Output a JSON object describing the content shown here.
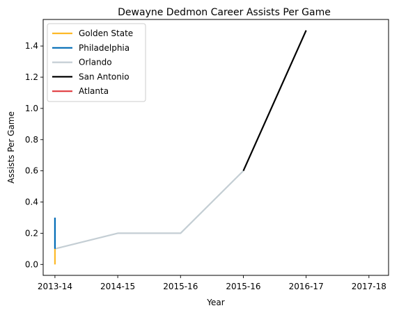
{
  "chart_data": {
    "type": "line",
    "title": "Dewayne Dedmon Career Assists Per Game",
    "xlabel": "Year",
    "ylabel": "Assists Per Game",
    "x_ticks": [
      "2013-14",
      "2014-15",
      "2015-16",
      "2015-16",
      "2016-17",
      "2017-18"
    ],
    "xlim": [
      -0.15,
      4.25
    ],
    "ylim": [
      -0.07,
      1.57
    ],
    "y_ticks": [
      0.0,
      0.2,
      0.4,
      0.6,
      0.8,
      1.0,
      1.2,
      1.4
    ],
    "grid": false,
    "legend_position": "top-left",
    "series": [
      {
        "name": "Golden State",
        "color": "#FDB927",
        "points": [
          [
            0,
            0.1
          ],
          [
            0,
            0.0
          ]
        ]
      },
      {
        "name": "Philadelphia",
        "color": "#006BB6",
        "points": [
          [
            0,
            0.1
          ],
          [
            0,
            0.3
          ]
        ]
      },
      {
        "name": "Orlando",
        "color": "#C4CED4",
        "points": [
          [
            0,
            0.1
          ],
          [
            1,
            0.2
          ],
          [
            2,
            0.2
          ],
          [
            3,
            0.6
          ]
        ]
      },
      {
        "name": "San Antonio",
        "color": "#000000",
        "points": [
          [
            3,
            0.6
          ],
          [
            4,
            1.5
          ]
        ]
      },
      {
        "name": "Atlanta",
        "color": "#E03A3E",
        "points": []
      }
    ]
  }
}
